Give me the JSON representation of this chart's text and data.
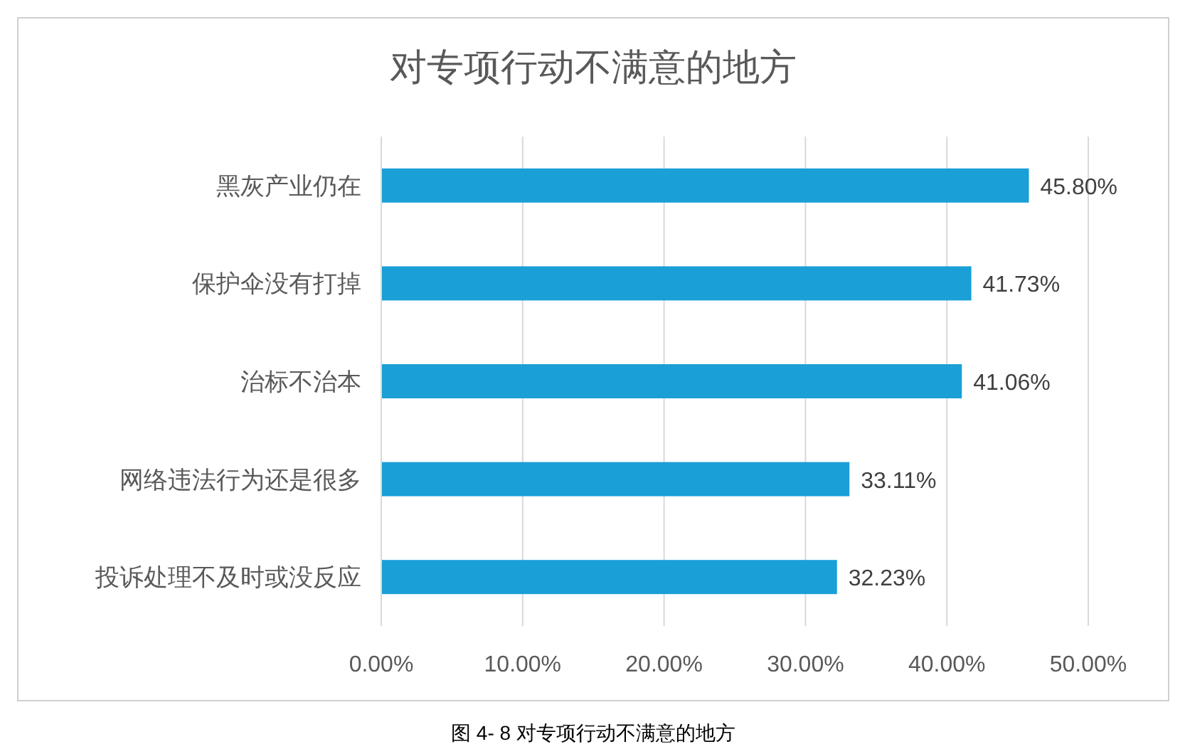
{
  "chart_data": {
    "type": "bar",
    "orientation": "horizontal",
    "title": "对专项行动不满意的地方",
    "categories": [
      "黑灰产业仍在",
      "保护伞没有打掉",
      "治标不治本",
      "网络违法行为还是很多",
      "投诉处理不及时或没反应"
    ],
    "values": [
      45.8,
      41.73,
      41.06,
      33.11,
      32.23
    ],
    "value_labels": [
      "45.80%",
      "41.73%",
      "41.06%",
      "33.11%",
      "32.23%"
    ],
    "color": "#1a9fd6",
    "xlim": [
      0,
      50
    ],
    "xticks": [
      {
        "value": 0,
        "label": "0.00%"
      },
      {
        "value": 10,
        "label": "10.00%"
      },
      {
        "value": 20,
        "label": "20.00%"
      },
      {
        "value": 30,
        "label": "30.00%"
      },
      {
        "value": 40,
        "label": "40.00%"
      },
      {
        "value": 50,
        "label": "50.00%"
      }
    ],
    "grid": "x",
    "annotations": [
      "图 4- 8  对专项行动不满意的地方"
    ]
  }
}
